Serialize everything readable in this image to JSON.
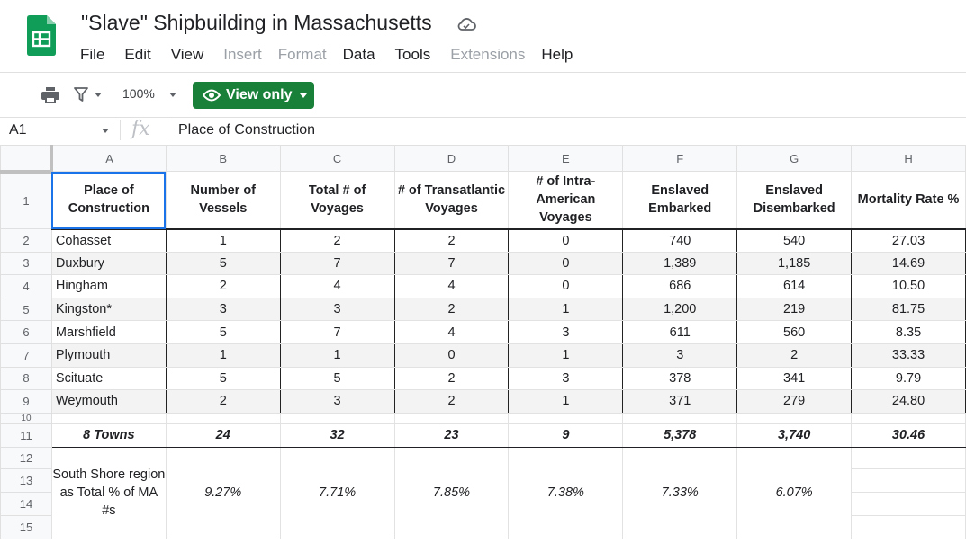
{
  "doc": {
    "title": "\"Slave\" Shipbuilding in Massachusetts"
  },
  "menu": [
    {
      "label": "File",
      "dim": false
    },
    {
      "label": "Edit",
      "dim": false
    },
    {
      "label": "View",
      "dim": false
    },
    {
      "label": "Insert",
      "dim": true
    },
    {
      "label": "Format",
      "dim": true
    },
    {
      "label": "Data",
      "dim": false
    },
    {
      "label": "Tools",
      "dim": false
    },
    {
      "label": "Extensions",
      "dim": true
    },
    {
      "label": "Help",
      "dim": false
    }
  ],
  "toolbar": {
    "zoom": "100%",
    "view_only_label": "View only"
  },
  "formula_bar": {
    "cell_ref": "A1",
    "fx": "fx",
    "content": "Place of Construction"
  },
  "columns": [
    "A",
    "B",
    "C",
    "D",
    "E",
    "F",
    "G",
    "H"
  ],
  "row_numbers": [
    "1",
    "2",
    "3",
    "4",
    "5",
    "6",
    "7",
    "8",
    "9",
    "10",
    "11",
    "12",
    "13",
    "14",
    "15"
  ],
  "table": {
    "headers": [
      "Place of Construction",
      "Number of Vessels",
      "Total # of Voyages",
      "# of Transatlantic Voyages",
      "# of Intra-American Voyages",
      "Enslaved Embarked",
      "Enslaved Disembarked",
      "Mortality Rate %"
    ],
    "rows": [
      [
        "Cohasset",
        "1",
        "2",
        "2",
        "0",
        "740",
        "540",
        "27.03"
      ],
      [
        "Duxbury",
        "5",
        "7",
        "7",
        "0",
        "1,389",
        "1,185",
        "14.69"
      ],
      [
        "Hingham",
        "2",
        "4",
        "4",
        "0",
        "686",
        "614",
        "10.50"
      ],
      [
        "Kingston*",
        "3",
        "3",
        "2",
        "1",
        "1,200",
        "219",
        "81.75"
      ],
      [
        "Marshfield",
        "5",
        "7",
        "4",
        "3",
        "611",
        "560",
        "8.35"
      ],
      [
        "Plymouth",
        "1",
        "1",
        "0",
        "1",
        "3",
        "2",
        "33.33"
      ],
      [
        "Scituate",
        "5",
        "5",
        "2",
        "3",
        "378",
        "341",
        "9.79"
      ],
      [
        "Weymouth",
        "2",
        "3",
        "2",
        "1",
        "371",
        "279",
        "24.80"
      ]
    ],
    "totals": [
      "8 Towns",
      "24",
      "32",
      "23",
      "9",
      "5,378",
      "3,740",
      "30.46"
    ],
    "percent_label": "South Shore region as Total % of MA #s",
    "percents": [
      "9.27%",
      "7.71%",
      "7.85%",
      "7.38%",
      "7.33%",
      "6.07%"
    ]
  },
  "icons": {
    "logo": "google-sheets-logo",
    "cloud": "cloud-saved-icon",
    "print": "print-icon",
    "filter": "filter-icon",
    "eye": "eye-icon"
  },
  "colors": {
    "view_only_bg": "#188038",
    "selection": "#1a73e8",
    "logo_green": "#0f9d58"
  }
}
